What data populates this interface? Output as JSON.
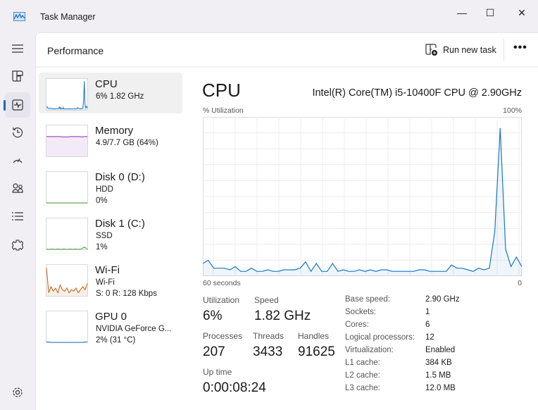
{
  "window": {
    "title": "Task Manager",
    "minimize": "—",
    "maximize": "☐",
    "close": "✕"
  },
  "nav": [
    "hamburger-icon",
    "processes-icon",
    "performance-icon",
    "app-history-icon",
    "startup-icon",
    "users-icon",
    "details-icon",
    "services-icon",
    "settings-icon"
  ],
  "header": {
    "title": "Performance",
    "run_new_task": "Run new task",
    "more": "•••"
  },
  "devices": [
    {
      "name": "CPU",
      "line1": "6% 1.82 GHz",
      "line2": "",
      "color": "#1a78c2",
      "values": [
        8,
        10,
        5,
        5,
        5,
        6,
        4,
        4,
        5,
        3,
        4,
        3,
        4,
        4,
        4,
        4,
        5,
        9,
        3,
        8,
        3,
        3,
        8,
        3,
        4,
        3,
        3,
        4,
        3,
        4,
        3,
        4,
        4,
        3,
        3,
        3,
        4,
        4,
        3,
        3,
        3,
        7,
        5,
        5,
        4,
        3,
        5,
        4,
        5,
        28,
        93,
        17,
        6,
        12,
        6
      ]
    },
    {
      "name": "Memory",
      "line1": "4.9/7.7 GB (64%)",
      "line2": "",
      "color": "#8b2fb8",
      "values": [
        64,
        64,
        64,
        64,
        64,
        64,
        63,
        63,
        63,
        64,
        64,
        64,
        64,
        63,
        64,
        64
      ]
    },
    {
      "name": "Disk 0 (D:)",
      "line1": "HDD",
      "line2": "0%",
      "color": "#4fa23a",
      "values": [
        0,
        0,
        0,
        0,
        0,
        0,
        0,
        0,
        0,
        0
      ]
    },
    {
      "name": "Disk 1 (C:)",
      "line1": "SSD",
      "line2": "1%",
      "color": "#4fa23a",
      "values": [
        1,
        0,
        1,
        0,
        1,
        0,
        1,
        0,
        1,
        0,
        1,
        0,
        2,
        8,
        1
      ]
    },
    {
      "name": "Wi-Fi",
      "line1": "Wi-Fi",
      "line2": "S: 0 R: 128 Kbps",
      "color": "#c0601a",
      "values": [
        90,
        10,
        30,
        15,
        25,
        10,
        35,
        20,
        15,
        25,
        10,
        20,
        15,
        25,
        10,
        20,
        30,
        20,
        40
      ]
    },
    {
      "name": "GPU 0",
      "line1": "NVIDIA GeForce G...",
      "line2": "2% (31 °C)",
      "color": "#1a78c2",
      "values": [
        2,
        0,
        0,
        0,
        0,
        0,
        0,
        0,
        2
      ]
    }
  ],
  "cpu": {
    "title": "CPU",
    "model": "Intel(R) Core(TM) i5-10400F CPU @ 2.90GHz",
    "ylabel": "% Utilization",
    "ymax_label": "100%",
    "x_left": "60 seconds",
    "x_right": "0",
    "stats": [
      {
        "k": "Utilization",
        "v": "6%"
      },
      {
        "k": "Speed",
        "v": "1.82 GHz"
      },
      {
        "k": "Processes",
        "v": "207"
      },
      {
        "k": "Threads",
        "v": "3433"
      },
      {
        "k": "Handles",
        "v": "91625"
      },
      {
        "k": "Up time",
        "v": "0:00:08:24"
      }
    ],
    "specs": [
      [
        "Base speed:",
        "2.90 GHz"
      ],
      [
        "Sockets:",
        "1"
      ],
      [
        "Cores:",
        "6"
      ],
      [
        "Logical processors:",
        "12"
      ],
      [
        "Virtualization:",
        "Enabled"
      ],
      [
        "L1 cache:",
        "384 KB"
      ],
      [
        "L2 cache:",
        "1.5 MB"
      ],
      [
        "L3 cache:",
        "12.0 MB"
      ]
    ]
  },
  "chart_data": {
    "type": "area",
    "title": "CPU",
    "ylabel": "% Utilization",
    "ylim": [
      0,
      100
    ],
    "xlim": [
      60,
      0
    ],
    "xlabel_left": "60 seconds",
    "xlabel_right": "0",
    "grid": true,
    "color": "#1a78c2",
    "values": [
      8,
      10,
      5,
      5,
      5,
      4,
      6,
      3,
      3,
      5,
      3,
      3,
      4,
      3,
      3,
      4,
      4,
      4,
      5,
      9,
      3,
      8,
      3,
      3,
      8,
      3,
      4,
      3,
      3,
      4,
      3,
      4,
      3,
      4,
      4,
      3,
      3,
      3,
      3,
      3,
      4,
      4,
      3,
      3,
      3,
      3,
      7,
      5,
      5,
      4,
      3,
      5,
      4,
      5,
      28,
      93,
      17,
      6,
      12,
      6
    ]
  }
}
